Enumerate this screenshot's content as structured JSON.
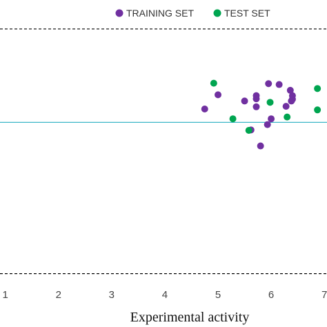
{
  "chart_data": {
    "type": "scatter",
    "title": "",
    "xlabel": "Experimental activity",
    "ylabel": "",
    "xlim": [
      0.9,
      7.05
    ],
    "ylim": [
      -3.7,
      2.75
    ],
    "x_ticks": [
      "1",
      "2",
      "3",
      "4",
      "5",
      "6",
      "7"
    ],
    "grid": false,
    "legend_position": "top-right",
    "reference_lines": [
      {
        "y": 0,
        "style": "solid",
        "color": "#3ab6c8"
      },
      {
        "y": 2.1,
        "style": "dashed",
        "color": "#000000"
      },
      {
        "y": -3.4,
        "style": "dashed",
        "color": "#000000"
      }
    ],
    "series": [
      {
        "name": "TRAINING SET",
        "color": "#7030a0",
        "points": [
          {
            "x": 4.75,
            "y": 0.3
          },
          {
            "x": 5.0,
            "y": 0.62
          },
          {
            "x": 5.5,
            "y": 0.48
          },
          {
            "x": 5.62,
            "y": -0.17
          },
          {
            "x": 5.72,
            "y": 0.6
          },
          {
            "x": 5.72,
            "y": 0.53
          },
          {
            "x": 5.72,
            "y": 0.35
          },
          {
            "x": 5.8,
            "y": -0.53
          },
          {
            "x": 5.93,
            "y": -0.05
          },
          {
            "x": 5.95,
            "y": 0.87
          },
          {
            "x": 6.0,
            "y": 0.08
          },
          {
            "x": 6.15,
            "y": 0.85
          },
          {
            "x": 6.28,
            "y": 0.36
          },
          {
            "x": 6.36,
            "y": 0.72
          },
          {
            "x": 6.4,
            "y": 0.6
          },
          {
            "x": 6.38,
            "y": 0.48
          },
          {
            "x": 6.4,
            "y": 0.52
          }
        ]
      },
      {
        "name": "TEST SET",
        "color": "#00a550",
        "points": [
          {
            "x": 4.92,
            "y": 0.88
          },
          {
            "x": 5.28,
            "y": 0.08
          },
          {
            "x": 5.58,
            "y": -0.18
          },
          {
            "x": 5.98,
            "y": 0.45
          },
          {
            "x": 6.3,
            "y": 0.12
          },
          {
            "x": 6.87,
            "y": 0.76
          },
          {
            "x": 6.87,
            "y": 0.28
          }
        ]
      }
    ]
  }
}
